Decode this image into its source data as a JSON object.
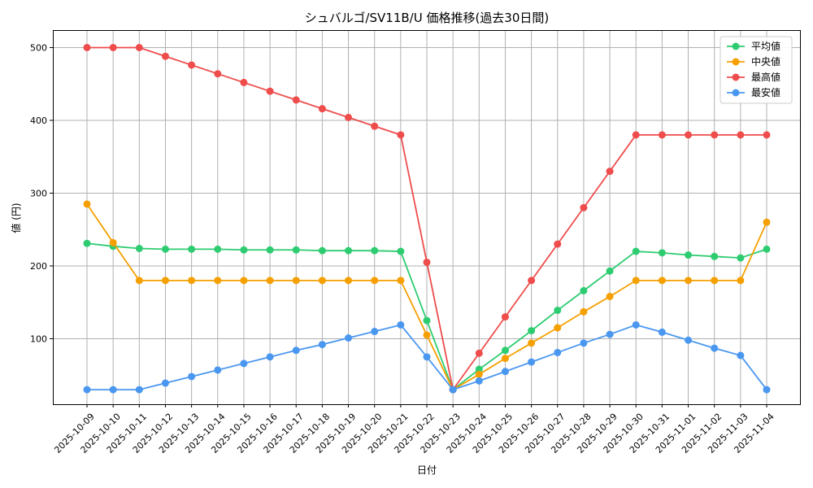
{
  "chart_data": {
    "type": "line",
    "title": "シュバルゴ/SV11B/U 価格推移(過去30日間)",
    "xlabel": "日付",
    "ylabel": "値 (円)",
    "categories": [
      "2025-10-09",
      "2025-10-10",
      "2025-10-11",
      "2025-10-12",
      "2025-10-13",
      "2025-10-14",
      "2025-10-15",
      "2025-10-16",
      "2025-10-17",
      "2025-10-18",
      "2025-10-19",
      "2025-10-20",
      "2025-10-21",
      "2025-10-22",
      "2025-10-23",
      "2025-10-24",
      "2025-10-25",
      "2025-10-26",
      "2025-10-27",
      "2025-10-28",
      "2025-10-29",
      "2025-10-30",
      "2025-10-31",
      "2025-11-01",
      "2025-11-02",
      "2025-11-03",
      "2025-11-04"
    ],
    "ylim": [
      10,
      524
    ],
    "yticks": [
      100,
      200,
      300,
      400,
      500
    ],
    "grid": true,
    "legend_position": "top-right",
    "series": [
      {
        "name": "平均値",
        "color": "#2ecc71",
        "values": [
          231,
          227,
          224,
          223,
          223,
          223,
          222,
          222,
          222,
          221,
          221,
          221,
          220,
          125,
          30,
          58,
          84,
          111,
          139,
          166,
          193,
          220,
          218,
          215,
          213,
          211,
          223
        ]
      },
      {
        "name": "中央値",
        "color": "#f5a000",
        "values": [
          285,
          232,
          180,
          180,
          180,
          180,
          180,
          180,
          180,
          180,
          180,
          180,
          180,
          105,
          30,
          51,
          73,
          94,
          115,
          137,
          158,
          180,
          180,
          180,
          180,
          180,
          260
        ]
      },
      {
        "name": "最高値",
        "color": "#ef4c4c",
        "values": [
          500,
          500,
          500,
          488,
          476,
          464,
          452,
          440,
          428,
          416,
          404,
          392,
          380,
          205,
          30,
          80,
          130,
          180,
          230,
          280,
          330,
          380,
          380,
          380,
          380,
          380,
          380
        ]
      },
      {
        "name": "最安値",
        "color": "#4a97f0",
        "values": [
          30,
          30,
          30,
          39,
          48,
          57,
          66,
          75,
          84,
          92,
          101,
          110,
          119,
          75,
          30,
          42,
          55,
          68,
          81,
          94,
          106,
          119,
          109,
          98,
          87,
          77,
          30
        ]
      }
    ]
  }
}
